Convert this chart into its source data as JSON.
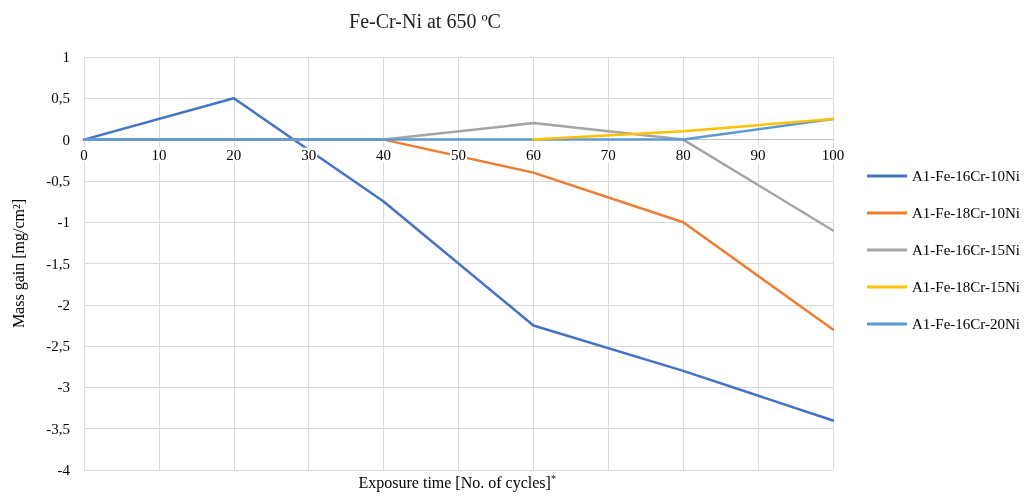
{
  "chart_data": {
    "type": "line",
    "title": "Fe-Cr-Ni at 650 ºC",
    "xlabel": "Exposure time [No. of cycles]$^{*}$",
    "ylabel": "Mass gain [mg/cm²]",
    "x": [
      0,
      20,
      40,
      60,
      80,
      100
    ],
    "series": [
      {
        "name": "A1-Fe-16Cr-10Ni",
        "color": "#4472c4",
        "values": [
          0,
          0.5,
          -0.75,
          -2.25,
          -2.8,
          -3.4
        ]
      },
      {
        "name": "A1-Fe-18Cr-10Ni",
        "color": "#ed7d31",
        "values": [
          0,
          0,
          0,
          -0.4,
          -1.0,
          -2.3
        ]
      },
      {
        "name": "A1-Fe-16Cr-15Ni",
        "color": "#a5a5a5",
        "values": [
          0,
          0,
          0,
          0.2,
          0,
          -1.1
        ]
      },
      {
        "name": "A1-Fe-18Cr-15Ni",
        "color": "#ffc000",
        "values": [
          null,
          null,
          null,
          0,
          0.1,
          0.25
        ]
      },
      {
        "name": "A1-Fe-16Cr-20Ni",
        "color": "#5b9bd5",
        "values": [
          0,
          0,
          0,
          0,
          0,
          0.25
        ]
      }
    ],
    "xlim": [
      0,
      100
    ],
    "xticks": [
      0,
      10,
      20,
      30,
      40,
      50,
      60,
      70,
      80,
      90,
      100
    ],
    "ylim": [
      -4,
      1
    ],
    "yticks": [
      {
        "value": -4,
        "label": "-4"
      },
      {
        "value": -3.5,
        "label": "-3,5"
      },
      {
        "value": -3,
        "label": "-3"
      },
      {
        "value": -2.5,
        "label": "-2,5"
      },
      {
        "value": -2,
        "label": "-2"
      },
      {
        "value": -1.5,
        "label": "-1,5"
      },
      {
        "value": -1,
        "label": "-1"
      },
      {
        "value": -0.5,
        "label": "-0,5"
      },
      {
        "value": 0,
        "label": "0"
      },
      {
        "value": 0.5,
        "label": "0,5"
      },
      {
        "value": 1,
        "label": "1"
      }
    ],
    "grid": true,
    "legend": "right",
    "marker": "none",
    "line_style": "solid"
  }
}
